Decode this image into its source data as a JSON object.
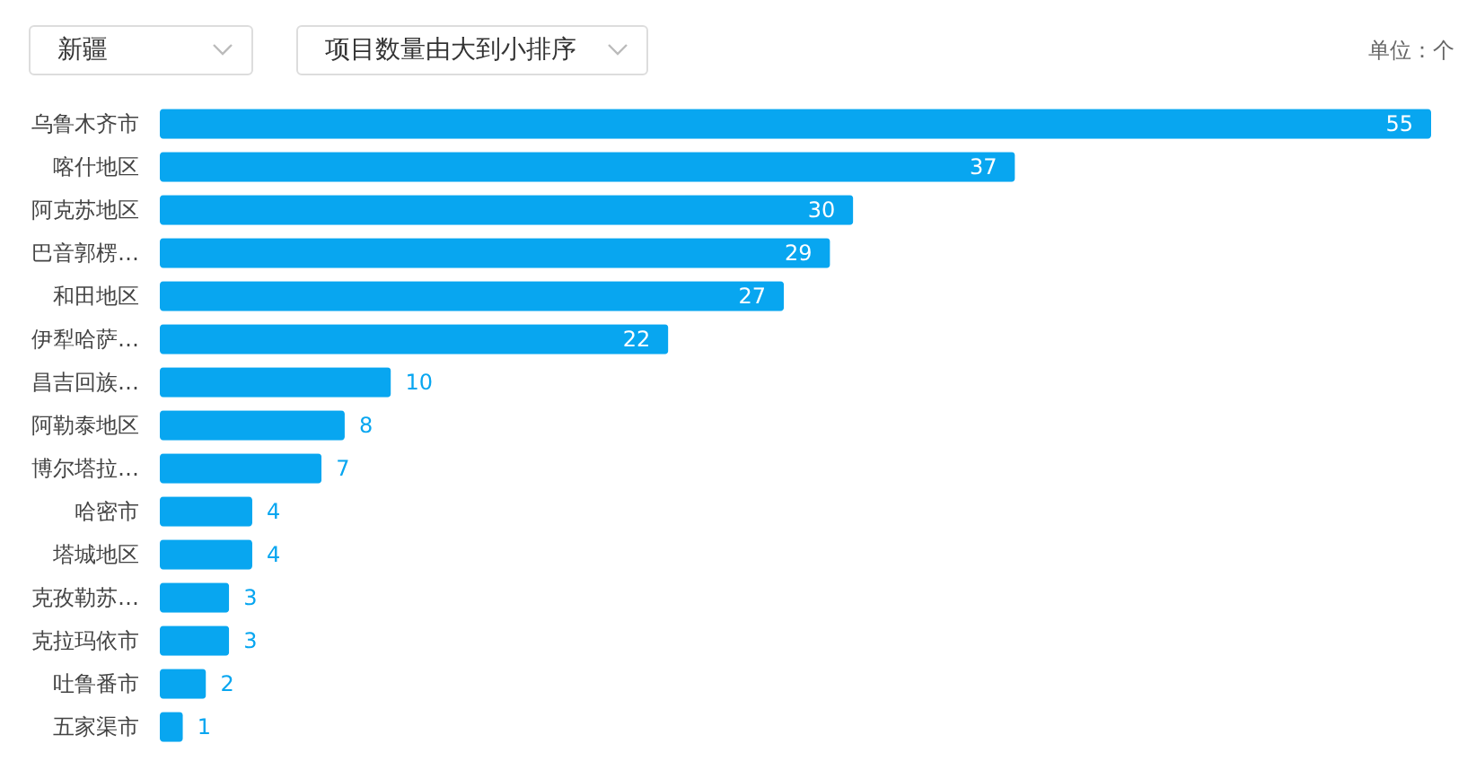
{
  "chart_data": {
    "type": "bar",
    "orientation": "horizontal",
    "categories": [
      "乌鲁木齐市",
      "喀什地区",
      "阿克苏地区",
      "巴音郭楞…",
      "和田地区",
      "伊犁哈萨…",
      "昌吉回族…",
      "阿勒泰地区",
      "博尔塔拉…",
      "哈密市",
      "塔城地区",
      "克孜勒苏…",
      "克拉玛依市",
      "吐鲁番市",
      "五家渠市"
    ],
    "values": [
      55,
      37,
      30,
      29,
      27,
      22,
      10,
      8,
      7,
      4,
      4,
      3,
      3,
      2,
      1
    ],
    "color": "#08a6f0",
    "data_labels": true,
    "xlim": [
      0,
      55
    ],
    "annotations": [
      "新疆",
      "项目数量由大到小排序",
      "单位：个"
    ]
  }
}
